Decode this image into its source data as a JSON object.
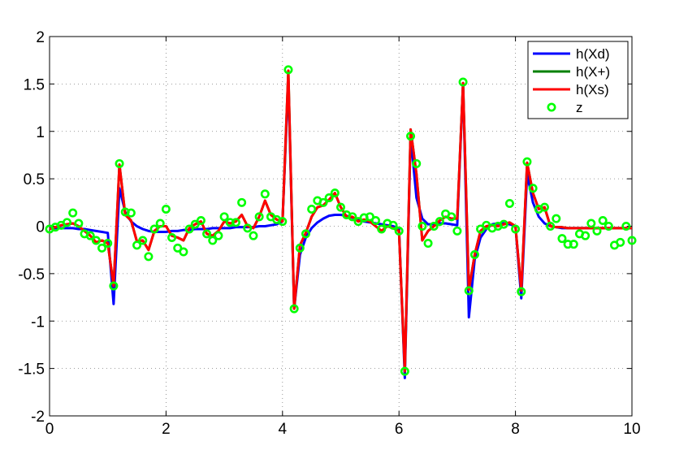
{
  "chart_data": {
    "type": "line",
    "title": "",
    "xlabel": "",
    "ylabel": "",
    "xlim": [
      0,
      10
    ],
    "ylim": [
      -2,
      2
    ],
    "xticks": [
      0,
      2,
      4,
      6,
      8,
      10
    ],
    "yticks": [
      -2,
      -1.5,
      -1,
      -0.5,
      0,
      0.5,
      1,
      1.5,
      2
    ],
    "xtick_labels": [
      "0",
      "2",
      "4",
      "6",
      "8",
      "10"
    ],
    "ytick_labels": [
      "-2",
      "-1.5",
      "-1",
      "-0.5",
      "0",
      "0.5",
      "1",
      "1.5",
      "2"
    ],
    "grid": true,
    "legend_position": "top-right",
    "x": [
      0.0,
      0.1,
      0.2,
      0.3,
      0.4,
      0.5,
      0.6,
      0.7,
      0.8,
      0.9,
      1.0,
      1.1,
      1.2,
      1.3,
      1.4,
      1.5,
      1.6,
      1.7,
      1.8,
      1.9,
      2.0,
      2.1,
      2.2,
      2.3,
      2.4,
      2.5,
      2.6,
      2.7,
      2.8,
      2.9,
      3.0,
      3.1,
      3.2,
      3.3,
      3.4,
      3.5,
      3.6,
      3.7,
      3.8,
      3.9,
      4.0,
      4.1,
      4.2,
      4.3,
      4.4,
      4.5,
      4.6,
      4.7,
      4.8,
      4.9,
      5.0,
      5.1,
      5.2,
      5.3,
      5.4,
      5.5,
      5.6,
      5.7,
      5.8,
      5.9,
      6.0,
      6.1,
      6.2,
      6.3,
      6.4,
      6.5,
      6.6,
      6.7,
      6.8,
      6.9,
      7.0,
      7.1,
      7.2,
      7.3,
      7.4,
      7.5,
      7.6,
      7.7,
      7.8,
      7.9,
      8.0,
      8.1,
      8.2,
      8.3,
      8.4,
      8.5,
      8.6,
      8.7,
      8.8,
      8.9,
      9.0,
      9.1,
      9.2,
      9.3,
      9.4,
      9.5,
      9.6,
      9.7,
      9.8,
      9.9,
      10.0
    ],
    "series": [
      {
        "name": "h(Xd)",
        "color": "#0000ff",
        "marker": "none",
        "values": [
          -0.02,
          -0.02,
          -0.02,
          -0.02,
          -0.02,
          -0.03,
          -0.03,
          -0.04,
          -0.05,
          -0.06,
          -0.07,
          -0.82,
          0.4,
          0.15,
          0.05,
          0.0,
          -0.03,
          -0.05,
          -0.06,
          -0.06,
          -0.06,
          -0.05,
          -0.05,
          -0.04,
          -0.04,
          -0.03,
          -0.03,
          -0.03,
          -0.02,
          -0.02,
          -0.02,
          -0.02,
          -0.01,
          -0.01,
          -0.01,
          -0.01,
          0.0,
          0.0,
          0.01,
          0.02,
          0.05,
          1.55,
          -0.87,
          -0.3,
          -0.12,
          -0.02,
          0.04,
          0.08,
          0.11,
          0.12,
          0.12,
          0.11,
          0.09,
          0.07,
          0.05,
          0.04,
          0.03,
          0.02,
          0.01,
          0.0,
          -0.02,
          -1.6,
          0.95,
          0.3,
          0.08,
          0.02,
          0.02,
          0.03,
          0.03,
          0.02,
          0.01,
          1.5,
          -0.96,
          -0.35,
          -0.12,
          -0.03,
          0.02,
          0.03,
          0.03,
          0.02,
          0.0,
          -0.76,
          0.55,
          0.25,
          0.1,
          0.03,
          0.0,
          -0.01,
          -0.02,
          -0.02,
          -0.02,
          -0.02,
          -0.02,
          -0.02,
          -0.02,
          -0.02,
          -0.02,
          -0.02,
          -0.02,
          -0.02,
          -0.02
        ]
      },
      {
        "name": "h(X+)",
        "color": "#008000",
        "marker": "none",
        "values": [
          -0.03,
          -0.01,
          0.01,
          0.02,
          0.03,
          0.0,
          -0.05,
          -0.1,
          -0.17,
          -0.15,
          -0.18,
          -0.63,
          0.65,
          0.12,
          0.06,
          -0.16,
          -0.15,
          -0.25,
          -0.05,
          0.0,
          0.0,
          -0.1,
          -0.12,
          -0.15,
          -0.02,
          0.02,
          0.05,
          -0.08,
          -0.1,
          -0.05,
          0.05,
          0.03,
          0.05,
          0.12,
          0.0,
          -0.02,
          0.1,
          0.27,
          0.12,
          0.07,
          0.05,
          1.64,
          -0.87,
          -0.2,
          -0.07,
          0.1,
          0.2,
          0.22,
          0.28,
          0.35,
          0.2,
          0.1,
          0.1,
          0.05,
          0.07,
          0.05,
          0.0,
          -0.05,
          0.0,
          -0.02,
          -0.05,
          -1.53,
          1.02,
          0.55,
          -0.15,
          -0.05,
          0.0,
          0.06,
          0.1,
          0.08,
          0.08,
          1.51,
          -0.67,
          -0.3,
          -0.05,
          0.0,
          0.01,
          0.0,
          0.02,
          0.04,
          0.0,
          -0.68,
          0.67,
          0.35,
          0.18,
          0.2,
          0.0,
          -0.01,
          -0.01,
          -0.02,
          -0.02,
          -0.02,
          -0.02,
          -0.02,
          -0.02,
          -0.02,
          -0.02,
          -0.02,
          -0.02,
          -0.02,
          -0.02
        ]
      },
      {
        "name": "h(Xs)",
        "color": "#ff0000",
        "marker": "none",
        "values": [
          -0.03,
          -0.01,
          0.01,
          0.02,
          0.03,
          0.0,
          -0.05,
          -0.1,
          -0.17,
          -0.15,
          -0.18,
          -0.63,
          0.65,
          0.12,
          0.06,
          -0.16,
          -0.15,
          -0.25,
          -0.05,
          0.0,
          0.0,
          -0.1,
          -0.12,
          -0.15,
          -0.02,
          0.02,
          0.05,
          -0.08,
          -0.1,
          -0.05,
          0.05,
          0.03,
          0.05,
          0.12,
          0.0,
          -0.02,
          0.1,
          0.27,
          0.12,
          0.07,
          0.05,
          1.64,
          -0.87,
          -0.2,
          -0.07,
          0.1,
          0.2,
          0.22,
          0.28,
          0.35,
          0.2,
          0.1,
          0.1,
          0.05,
          0.07,
          0.05,
          0.0,
          -0.05,
          0.0,
          -0.02,
          -0.05,
          -1.53,
          1.02,
          0.55,
          -0.15,
          -0.05,
          0.0,
          0.06,
          0.1,
          0.08,
          0.08,
          1.51,
          -0.67,
          -0.3,
          -0.05,
          0.0,
          0.01,
          0.0,
          0.02,
          0.04,
          0.0,
          -0.68,
          0.67,
          0.35,
          0.18,
          0.2,
          0.0,
          -0.01,
          -0.01,
          -0.02,
          -0.02,
          -0.02,
          -0.02,
          -0.02,
          -0.02,
          -0.02,
          -0.02,
          -0.02,
          -0.02,
          -0.02,
          -0.02
        ]
      },
      {
        "name": "z",
        "color": "#00ff00",
        "marker": "circle",
        "line": "none",
        "values": [
          -0.03,
          -0.01,
          0.01,
          0.04,
          0.14,
          0.03,
          -0.08,
          -0.1,
          -0.15,
          -0.23,
          -0.18,
          -0.63,
          0.66,
          0.15,
          0.14,
          -0.2,
          -0.15,
          -0.32,
          -0.03,
          0.03,
          0.18,
          -0.12,
          -0.23,
          -0.27,
          -0.03,
          0.02,
          0.06,
          -0.08,
          -0.15,
          -0.1,
          0.1,
          0.04,
          0.04,
          0.25,
          -0.02,
          -0.1,
          0.1,
          0.34,
          0.1,
          0.07,
          0.05,
          1.65,
          -0.87,
          -0.23,
          -0.08,
          0.18,
          0.27,
          0.25,
          0.3,
          0.35,
          0.2,
          0.12,
          0.1,
          0.05,
          0.09,
          0.1,
          0.06,
          -0.03,
          0.03,
          0.01,
          -0.05,
          -1.53,
          0.95,
          0.66,
          0.0,
          -0.18,
          0.0,
          0.05,
          0.13,
          0.1,
          -0.05,
          1.52,
          -0.68,
          -0.3,
          -0.03,
          0.01,
          -0.02,
          0.0,
          0.02,
          0.24,
          -0.03,
          -0.69,
          0.68,
          0.4,
          0.18,
          0.2,
          0.0,
          0.08,
          -0.13,
          -0.19,
          -0.19,
          -0.08,
          -0.1,
          0.03,
          -0.05,
          0.06,
          0.0,
          -0.2,
          -0.17,
          0.0,
          -0.15
        ]
      }
    ]
  }
}
